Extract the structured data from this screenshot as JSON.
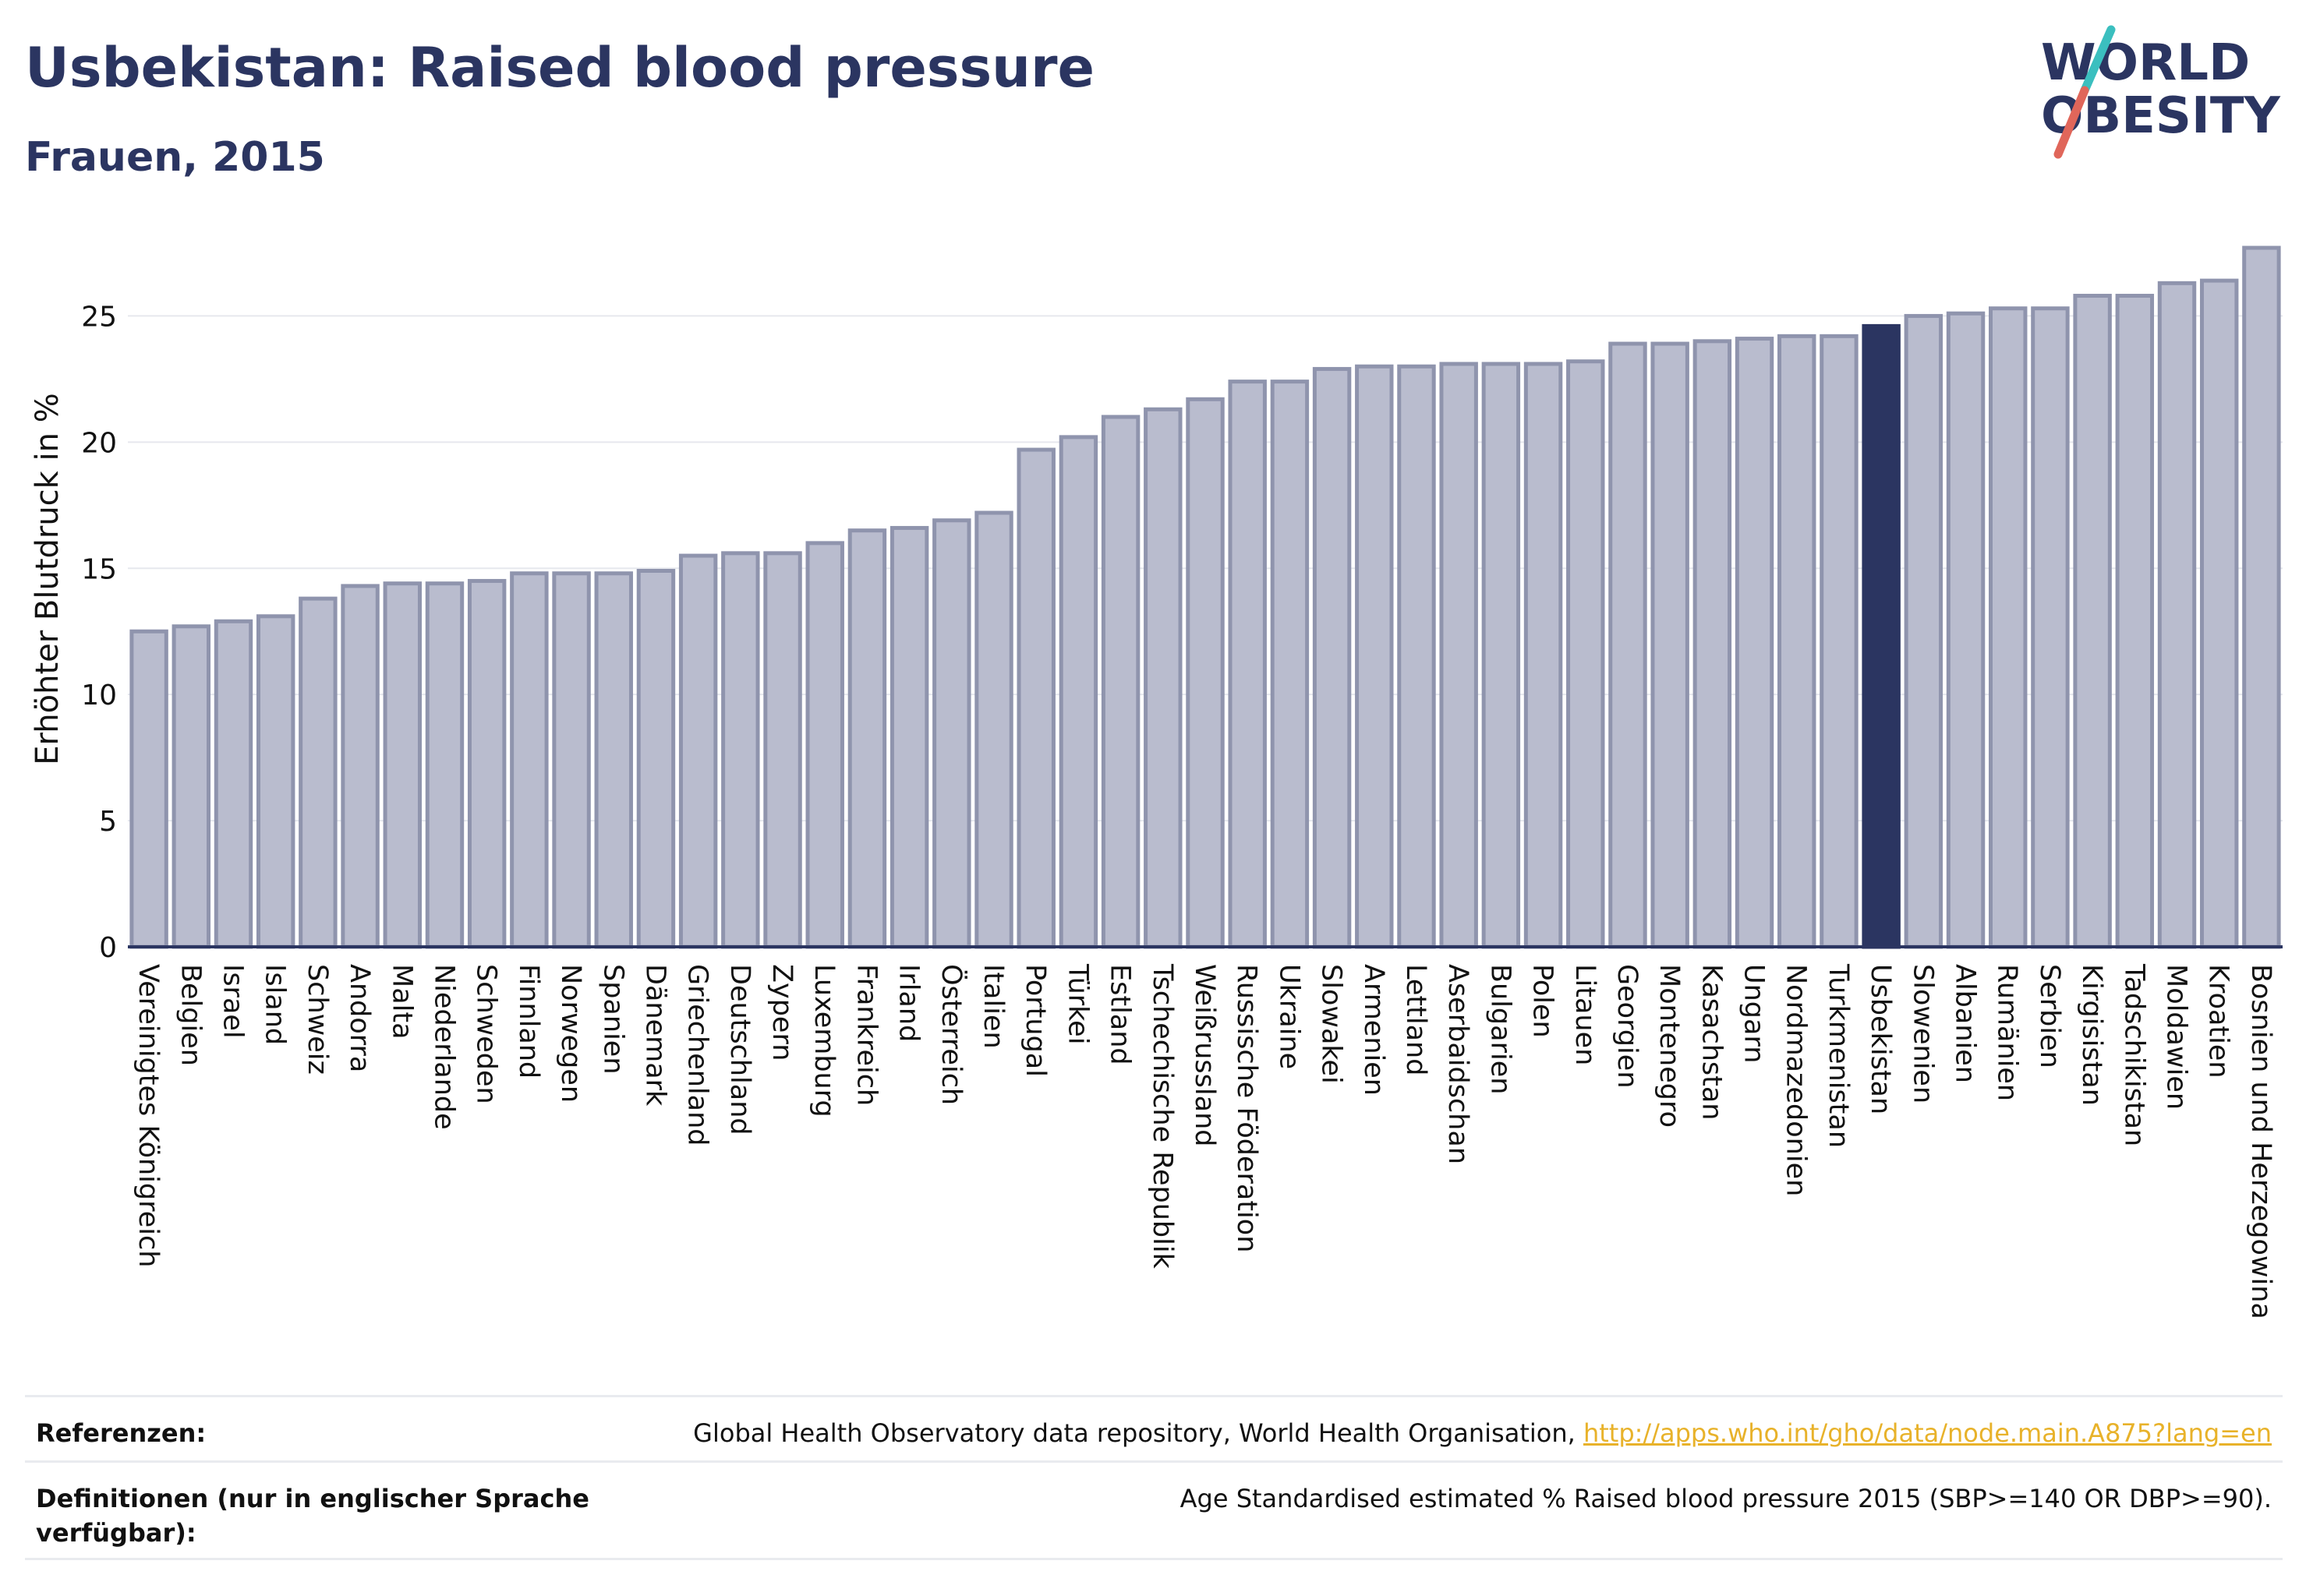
{
  "header": {
    "title": "Usbekistan: Raised blood pressure",
    "subtitle": "Frauen, 2015"
  },
  "logo": {
    "line1": "WORLD",
    "line2": "OBESITY",
    "colors": {
      "text": "#2b3561",
      "slash_top": "#3bbfbf",
      "slash_bottom": "#e0665a"
    }
  },
  "chart_data": {
    "type": "bar",
    "title": "",
    "xlabel": "",
    "ylabel": "Erhöhter Blutdruck in %",
    "ylim": [
      0,
      27.7
    ],
    "yticks": [
      0,
      5,
      10,
      15,
      20,
      25
    ],
    "grid": true,
    "highlight": "Usbekistan",
    "colors": {
      "bar": "#b9bcce",
      "bar_edge": "#8f94ad",
      "highlight": "#2b3561",
      "axis": "#2b3561",
      "grid": "#e6e8ee"
    },
    "categories": [
      "Vereinigtes Königreich",
      "Belgien",
      "Israel",
      "Island",
      "Schweiz",
      "Andorra",
      "Malta",
      "Niederlande",
      "Schweden",
      "Finnland",
      "Norwegen",
      "Spanien",
      "Dänemark",
      "Griechenland",
      "Deutschland",
      "Zypern",
      "Luxemburg",
      "Frankreich",
      "Irland",
      "Österreich",
      "Italien",
      "Portugal",
      "Türkei",
      "Estland",
      "Tschechische Republik",
      "Weißrussland",
      "Russische Föderation",
      "Ukraine",
      "Slowakei",
      "Armenien",
      "Lettland",
      "Aserbaidschan",
      "Bulgarien",
      "Polen",
      "Litauen",
      "Georgien",
      "Montenegro",
      "Kasachstan",
      "Ungarn",
      "Nordmazedonien",
      "Turkmenistan",
      "Usbekistan",
      "Slowenien",
      "Albanien",
      "Rumänien",
      "Serbien",
      "Kirgisistan",
      "Tadschikistan",
      "Moldawien",
      "Kroatien",
      "Bosnien und Herzegowina"
    ],
    "values": [
      12.5,
      12.7,
      12.9,
      13.1,
      13.8,
      14.3,
      14.4,
      14.4,
      14.5,
      14.8,
      14.8,
      14.8,
      14.9,
      15.5,
      15.6,
      15.6,
      16.0,
      16.5,
      16.6,
      16.9,
      17.2,
      19.7,
      20.2,
      21.0,
      21.3,
      21.7,
      22.4,
      22.4,
      22.9,
      23.0,
      23.0,
      23.1,
      23.1,
      23.1,
      23.2,
      23.9,
      23.9,
      24.0,
      24.1,
      24.2,
      24.2,
      24.6,
      25.0,
      25.1,
      25.3,
      25.3,
      25.8,
      25.8,
      26.3,
      26.4,
      27.7
    ]
  },
  "footer": {
    "references_label": "Referenzen:",
    "references_text": "Global Health Observatory data repository, World Health Organisation, ",
    "references_link": "http://apps.who.int/gho/data/node.main.A875?lang=en",
    "definitions_label": "Definitionen (nur in englischer Sprache verfügbar):",
    "definitions_text": "Age Standardised estimated % Raised blood pressure 2015 (SBP>=140 OR DBP>=90)."
  }
}
